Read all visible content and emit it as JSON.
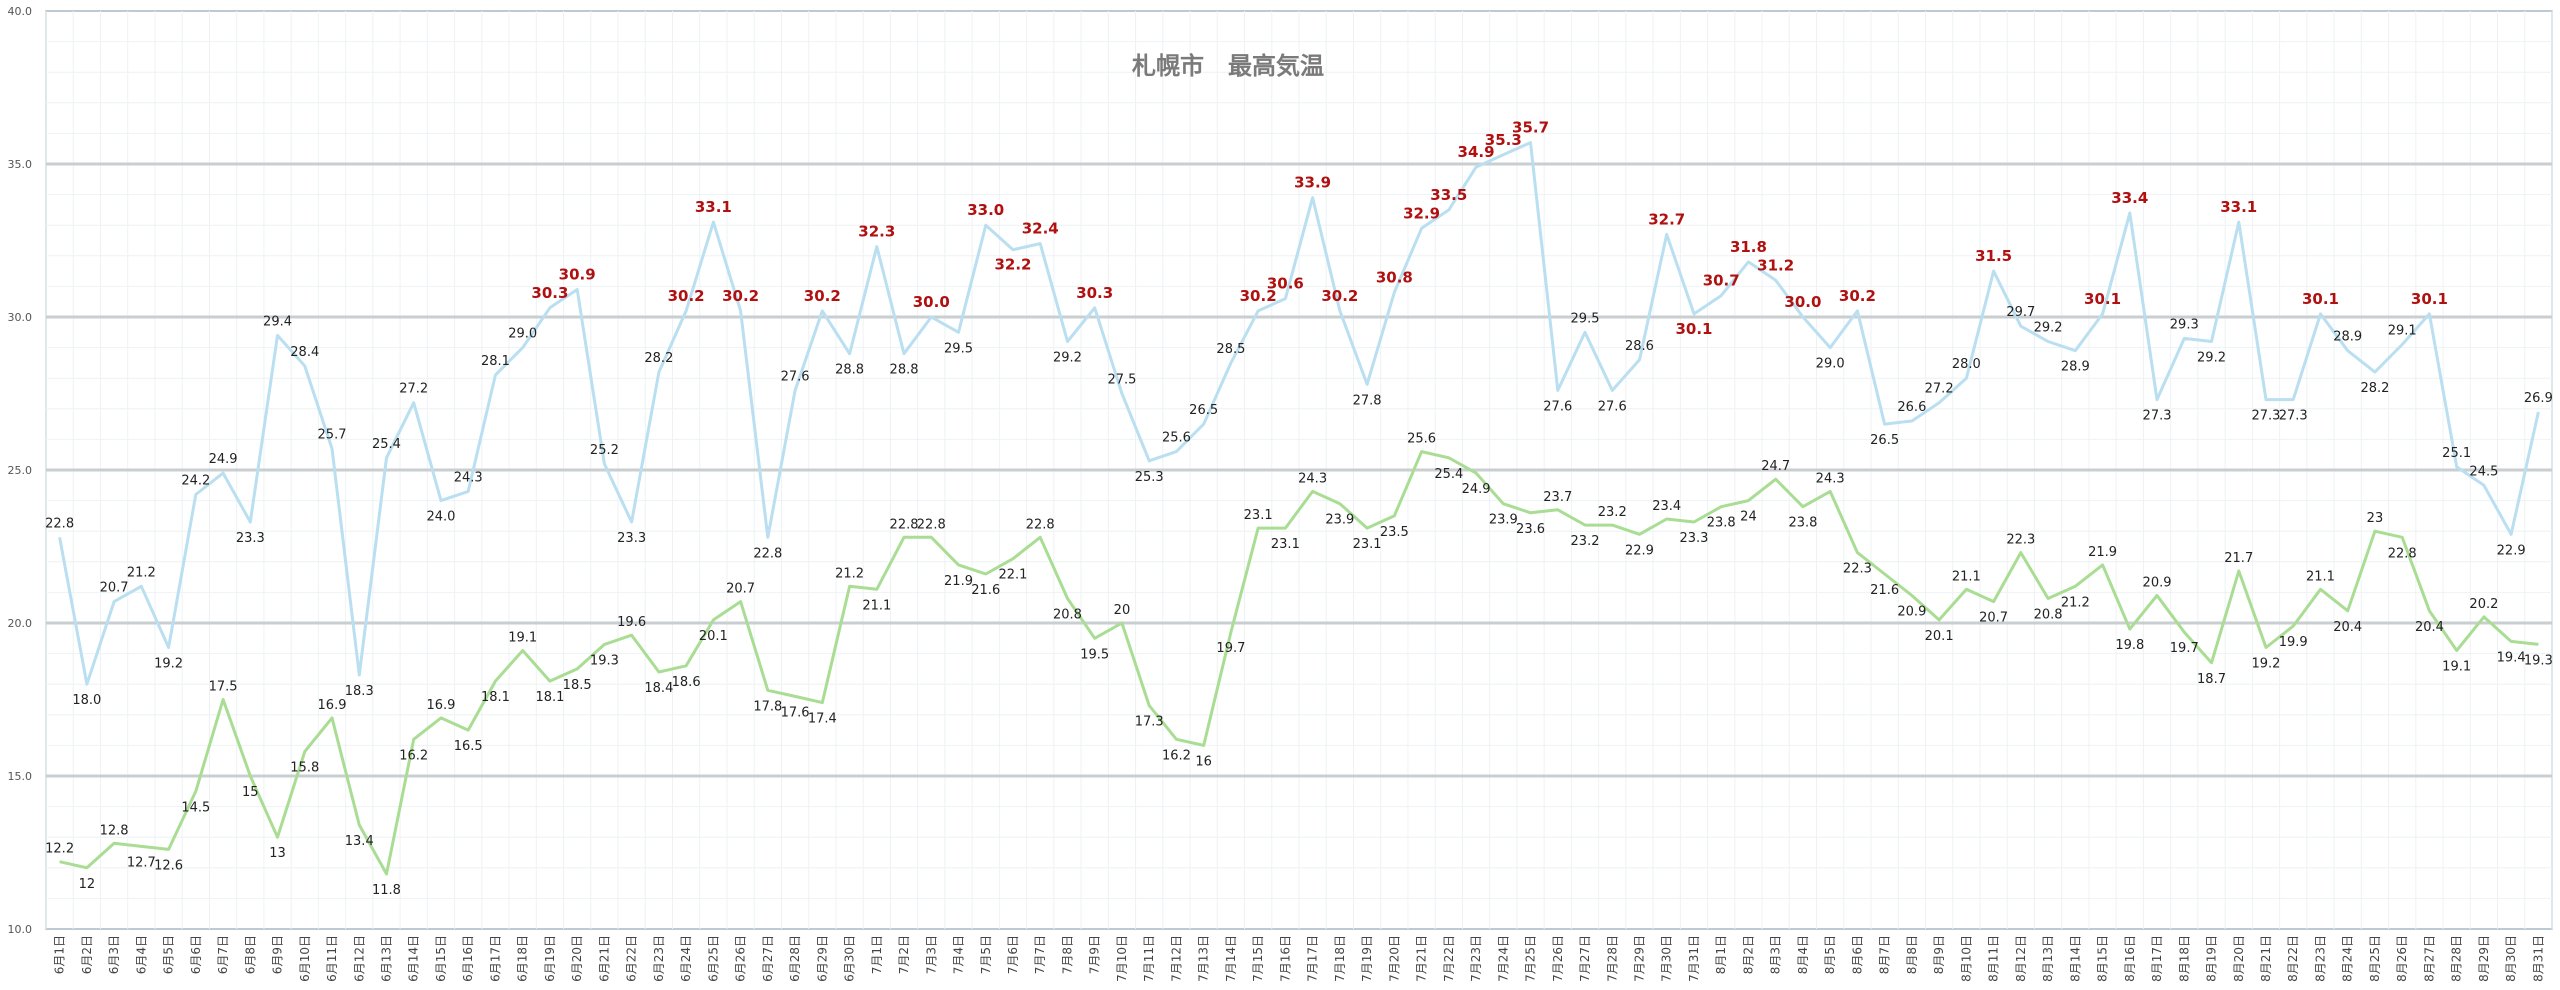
{
  "chart_data": {
    "type": "line",
    "title": "札幌市　最高気温",
    "xlabel": "",
    "ylabel": "",
    "ylim": [
      10.0,
      40.0
    ],
    "yticks": [
      "10.0",
      "15.0",
      "20.0",
      "25.0",
      "30.0",
      "35.0",
      "40.0"
    ],
    "grid": true,
    "highlight_threshold": 30.0,
    "categories": [
      "6月1日",
      "6月2日",
      "6月3日",
      "6月4日",
      "6月5日",
      "6月6日",
      "6月7日",
      "6月8日",
      "6月9日",
      "6月10日",
      "6月11日",
      "6月12日",
      "6月13日",
      "6月14日",
      "6月15日",
      "6月16日",
      "6月17日",
      "6月18日",
      "6月19日",
      "6月20日",
      "6月21日",
      "6月22日",
      "6月23日",
      "6月24日",
      "6月25日",
      "6月26日",
      "6月27日",
      "6月28日",
      "6月29日",
      "6月30日",
      "7月1日",
      "7月2日",
      "7月3日",
      "7月4日",
      "7月5日",
      "7月6日",
      "7月7日",
      "7月8日",
      "7月9日",
      "7月10日",
      "7月11日",
      "7月12日",
      "7月13日",
      "7月14日",
      "7月15日",
      "7月16日",
      "7月17日",
      "7月18日",
      "7月19日",
      "7月20日",
      "7月21日",
      "7月22日",
      "7月23日",
      "7月24日",
      "7月25日",
      "7月26日",
      "7月27日",
      "7月28日",
      "7月29日",
      "7月30日",
      "7月31日",
      "8月1日",
      "8月2日",
      "8月3日",
      "8月4日",
      "8月5日",
      "8月6日",
      "8月7日",
      "8月8日",
      "8月9日",
      "8月10日",
      "8月11日",
      "8月12日",
      "8月13日",
      "8月14日",
      "8月15日",
      "8月16日",
      "8月17日",
      "8月18日",
      "8月19日",
      "8月20日",
      "8月21日",
      "8月22日",
      "8月23日",
      "8月24日",
      "8月25日",
      "8月26日",
      "8月27日",
      "8月28日",
      "8月29日",
      "8月30日",
      "8月31日"
    ],
    "series": [
      {
        "color": "#b9dff0",
        "values": [
          22.8,
          18.0,
          20.7,
          21.2,
          19.2,
          24.2,
          24.9,
          23.3,
          29.4,
          28.4,
          25.7,
          18.3,
          25.4,
          27.2,
          24.0,
          24.3,
          28.1,
          29.0,
          30.3,
          30.9,
          25.2,
          23.3,
          28.2,
          30.2,
          33.1,
          30.2,
          22.8,
          27.6,
          30.2,
          28.8,
          32.3,
          28.8,
          30.0,
          29.5,
          33.0,
          32.2,
          32.4,
          29.2,
          30.3,
          27.5,
          25.3,
          25.6,
          26.5,
          28.5,
          30.2,
          30.6,
          33.9,
          30.2,
          27.8,
          30.8,
          32.9,
          33.5,
          34.9,
          35.3,
          35.7,
          27.6,
          29.5,
          27.6,
          28.6,
          32.7,
          30.1,
          30.7,
          31.8,
          31.2,
          30.0,
          29.0,
          30.2,
          26.5,
          26.6,
          27.2,
          28.0,
          31.5,
          29.7,
          29.2,
          28.9,
          30.1,
          33.4,
          27.3,
          29.3,
          29.2,
          33.1,
          27.3,
          27.3,
          30.1,
          28.9,
          28.2,
          29.1,
          30.1,
          25.1,
          24.5,
          22.9,
          26.9
        ],
        "labels": [
          "22.8",
          "18.0",
          "20.7",
          "21.2",
          "19.2",
          "24.2",
          "24.9",
          "23.3",
          "29.4",
          "28.4",
          "25.7",
          "18.3",
          "25.4",
          "27.2",
          "24.0",
          "24.3",
          "28.1",
          "29.0",
          "30.3",
          "30.9",
          "25.2",
          "23.3",
          "28.2",
          "30.2",
          "33.1",
          "30.2",
          "22.8",
          "27.6",
          "30.2",
          "28.8",
          "32.3",
          "28.8",
          "30.0",
          "29.5",
          "33.0",
          "32.2",
          "32.4",
          "29.2",
          "30.3",
          "27.5",
          "25.3",
          "25.6",
          "26.5",
          "28.5",
          "30.2",
          "30.6",
          "33.9",
          "30.2",
          "27.8",
          "30.8",
          "32.9",
          "33.5",
          "34.9",
          "35.3",
          "35.7",
          "27.6",
          "29.5",
          "27.6",
          "28.6",
          "32.7",
          "30.1",
          "30.7",
          "31.8",
          "31.2",
          "30.0",
          "29.0",
          "30.2",
          "26.5",
          "26.6",
          "27.2",
          "28.0",
          "31.5",
          "29.7",
          "29.2",
          "28.9",
          "30.1",
          "33.4",
          "27.3",
          "29.3",
          "29.2",
          "33.1",
          "27.3",
          "27.3",
          "30.1",
          "28.9",
          "28.2",
          "29.1",
          "30.1",
          "25.1",
          "24.5",
          "22.9",
          "26.9"
        ]
      },
      {
        "color": "#a9dd93",
        "values": [
          12.2,
          12.0,
          12.8,
          12.7,
          12.6,
          14.5,
          17.5,
          15.0,
          13.0,
          15.8,
          16.9,
          13.4,
          11.8,
          16.2,
          16.9,
          16.5,
          18.1,
          19.1,
          18.1,
          18.5,
          19.3,
          19.6,
          18.4,
          18.6,
          20.1,
          20.7,
          17.8,
          17.6,
          17.4,
          21.2,
          21.1,
          22.8,
          22.8,
          21.9,
          21.6,
          22.1,
          22.8,
          20.8,
          19.5,
          20.0,
          17.3,
          16.2,
          16.0,
          19.7,
          23.1,
          23.1,
          24.3,
          23.9,
          23.1,
          23.5,
          25.6,
          25.4,
          24.9,
          23.9,
          23.6,
          23.7,
          23.2,
          23.2,
          22.9,
          23.4,
          23.3,
          23.8,
          24.0,
          24.7,
          23.8,
          24.3,
          22.3,
          21.6,
          20.9,
          20.1,
          21.1,
          20.7,
          22.3,
          20.8,
          21.2,
          21.9,
          19.8,
          20.9,
          19.7,
          18.7,
          21.7,
          19.2,
          19.9,
          21.1,
          20.4,
          23.0,
          22.8,
          20.4,
          19.1,
          20.2,
          19.4,
          19.3
        ],
        "labels": [
          "12.2",
          "12",
          "12.8",
          "12.7",
          "12.6",
          "14.5",
          "17.5",
          "15",
          "13",
          "15.8",
          "16.9",
          "13.4",
          "11.8",
          "16.2",
          "16.9",
          "16.5",
          "18.1",
          "19.1",
          "18.1",
          "18.5",
          "19.3",
          "19.6",
          "18.4",
          "18.6",
          "20.1",
          "20.7",
          "17.8",
          "17.6",
          "17.4",
          "21.2",
          "21.1",
          "22.8",
          "22.8",
          "21.9",
          "21.6",
          "22.1",
          "22.8",
          "20.8",
          "19.5",
          "20",
          "17.3",
          "16.2",
          "16",
          "19.7",
          "23.1",
          "23.1",
          "24.3",
          "23.9",
          "23.1",
          "23.5",
          "25.6",
          "25.4",
          "24.9",
          "23.9",
          "23.6",
          "23.7",
          "23.2",
          "23.2",
          "22.9",
          "23.4",
          "23.3",
          "23.8",
          "24",
          "24.7",
          "23.8",
          "24.3",
          "22.3",
          "21.6",
          "20.9",
          "20.1",
          "21.1",
          "20.7",
          "22.3",
          "20.8",
          "21.2",
          "21.9",
          "19.8",
          "20.9",
          "19.7",
          "18.7",
          "21.7",
          "19.2",
          "19.9",
          "21.1",
          "20.4",
          "23",
          "22.8",
          "20.4",
          "19.1",
          "20.2",
          "19.4",
          "19.3"
        ]
      }
    ]
  }
}
